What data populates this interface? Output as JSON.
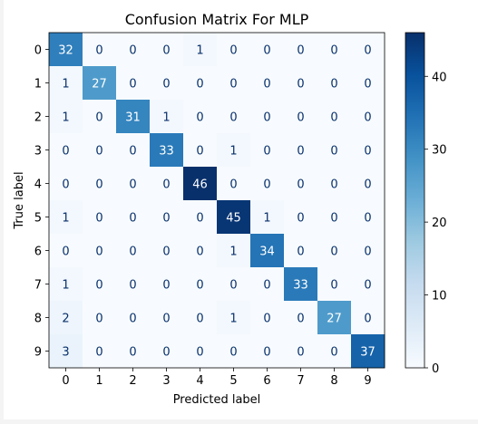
{
  "chart_data": {
    "type": "heatmap",
    "title": "Confusion Matrix For MLP",
    "xlabel": "Predicted label",
    "ylabel": "True label",
    "x_categories": [
      "0",
      "1",
      "2",
      "3",
      "4",
      "5",
      "6",
      "7",
      "8",
      "9"
    ],
    "y_categories": [
      "0",
      "1",
      "2",
      "3",
      "4",
      "5",
      "6",
      "7",
      "8",
      "9"
    ],
    "values": [
      [
        32,
        0,
        0,
        0,
        1,
        0,
        0,
        0,
        0,
        0
      ],
      [
        1,
        27,
        0,
        0,
        0,
        0,
        0,
        0,
        0,
        0
      ],
      [
        1,
        0,
        31,
        1,
        0,
        0,
        0,
        0,
        0,
        0
      ],
      [
        0,
        0,
        0,
        33,
        0,
        1,
        0,
        0,
        0,
        0
      ],
      [
        0,
        0,
        0,
        0,
        46,
        0,
        0,
        0,
        0,
        0
      ],
      [
        1,
        0,
        0,
        0,
        0,
        45,
        1,
        0,
        0,
        0
      ],
      [
        0,
        0,
        0,
        0,
        0,
        1,
        34,
        0,
        0,
        0
      ],
      [
        1,
        0,
        0,
        0,
        0,
        0,
        0,
        33,
        0,
        0
      ],
      [
        2,
        0,
        0,
        0,
        0,
        1,
        0,
        0,
        27,
        0
      ],
      [
        3,
        0,
        0,
        0,
        0,
        0,
        0,
        0,
        0,
        37
      ]
    ],
    "colorbar": {
      "ticks": [
        0,
        10,
        20,
        30,
        40
      ],
      "range": [
        0,
        46
      ],
      "colormap": "Blues"
    },
    "colors": {
      "low": "#f7fbff",
      "high": "#08306b",
      "text_light": "#ffffff",
      "text_dark": "#08306b"
    }
  }
}
